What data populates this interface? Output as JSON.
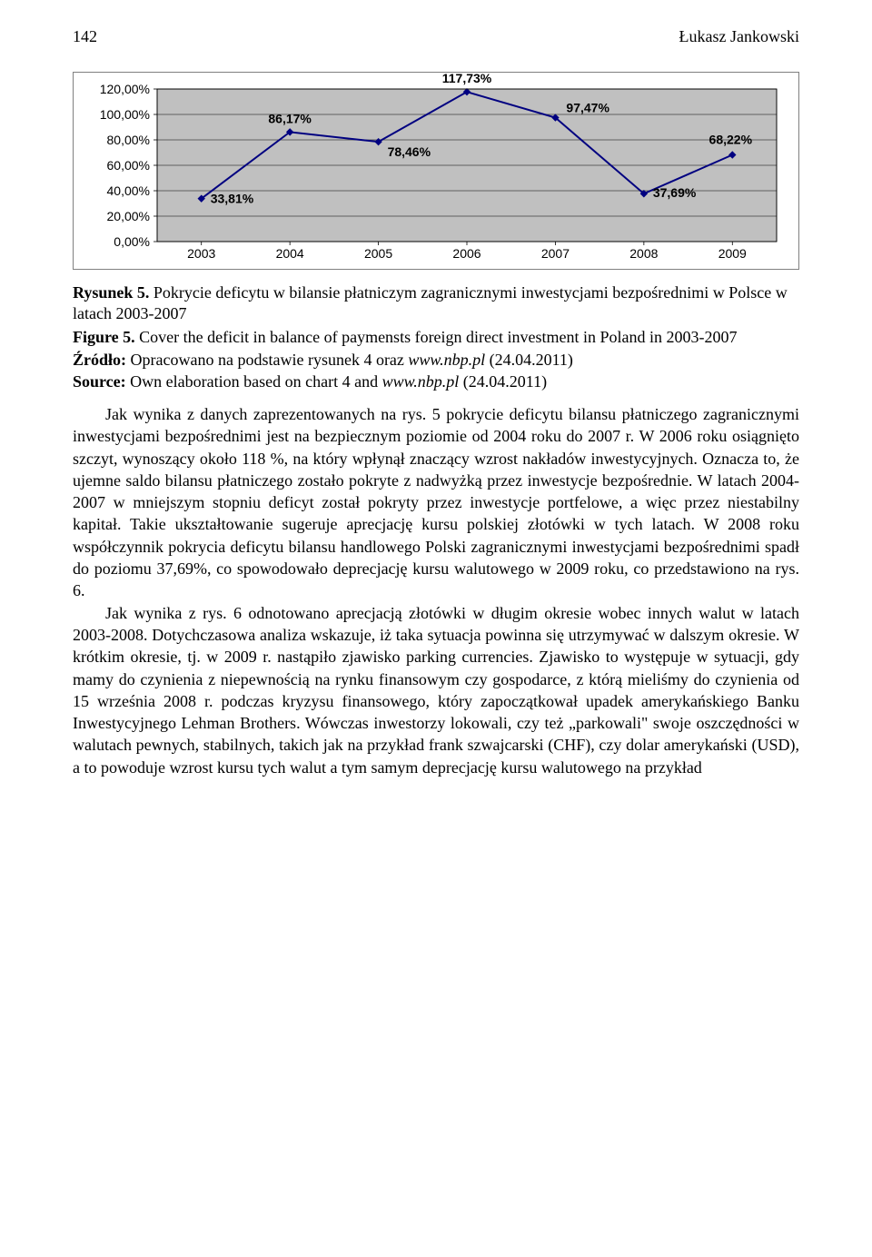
{
  "header": {
    "page_number": "142",
    "author": "Łukasz Jankowski"
  },
  "chart": {
    "type": "line",
    "categories": [
      "2003",
      "2004",
      "2005",
      "2006",
      "2007",
      "2008",
      "2009"
    ],
    "values": [
      33.81,
      86.17,
      78.46,
      117.73,
      97.47,
      37.69,
      68.22
    ],
    "point_labels": [
      "33,81%",
      "86,17%",
      "78,46%",
      "117,73%",
      "97,47%",
      "37,69%",
      "68,22%"
    ],
    "y_ticks": [
      0,
      20,
      40,
      60,
      80,
      100,
      120
    ],
    "y_tick_labels": [
      "0,00%",
      "20,00%",
      "40,00%",
      "60,00%",
      "80,00%",
      "100,00%",
      "120,00%"
    ],
    "ylim": [
      0,
      120
    ],
    "line_color": "#000080",
    "marker_color": "#000080",
    "marker_shape": "diamond",
    "marker_size": 7,
    "line_width": 2,
    "plot_background": "#c0c0c0",
    "grid_color": "#000000",
    "axis_color": "#000000",
    "tick_font_size": 14,
    "label_font_size": 14,
    "label_font_weight": "bold",
    "outer_background": "#ffffff"
  },
  "captions": {
    "rys_label": "Rysunek 5.",
    "rys_text": " Pokrycie deficytu w bilansie płatniczym zagranicznymi inwestycjami bezpośrednimi w Polsce w latach 2003-2007",
    "fig_label": "Figure 5.",
    "fig_text": " Cover the deficit in balance of paymensts foreign direct investment in Poland in 2003-2007",
    "zrodlo_label": "Źródło:",
    "zrodlo_text": " Opracowano na podstawie rysunek 4 oraz ",
    "zrodlo_link": "www.nbp.pl",
    "zrodlo_date": " (24.04.2011)",
    "source_label": "Source:",
    "source_text": " Own elaboration based on chart 4 and ",
    "source_link": "www.nbp.pl",
    "source_date": " (24.04.2011)"
  },
  "paragraphs": {
    "p1": "Jak wynika z danych zaprezentowanych na rys. 5 pokrycie deficytu bilansu płatniczego zagranicznymi inwestycjami bezpośrednimi jest na bezpiecznym poziomie od 2004 roku do 2007 r. W 2006 roku osiągnięto szczyt, wynoszący około 118 %, na który wpłynął znaczący wzrost nakładów inwestycyjnych. Oznacza to, że ujemne saldo bilansu płatniczego zostało pokryte z nadwyżką przez inwestycje bezpośrednie.  W latach 2004-2007 w mniejszym stopniu deficyt został pokryty przez inwestycje portfelowe, a więc przez niestabilny kapitał. Takie ukształtowanie sugeruje aprecjację kursu polskiej złotówki w tych latach. W 2008 roku współczynnik pokrycia deficytu bilansu handlowego Polski zagranicznymi inwestycjami bezpośrednimi spadł do poziomu 37,69%, co spowodowało deprecjację kursu walutowego w 2009 roku, co przedstawiono na  rys. 6.",
    "p2": "Jak wynika z rys. 6 odnotowano aprecjacją złotówki w długim okresie wobec innych walut w latach 2003-2008. Dotychczasowa analiza wskazuje, iż taka sytuacja powinna się utrzymywać w dalszym okresie. W krótkim okresie, tj. w 2009 r. nastąpiło zjawisko parking currencies. Zjawisko to występuje w sytuacji, gdy mamy do czynienia z niepewnością na rynku finansowym czy gospodarce, z którą mieliśmy do czynienia od 15 września 2008 r. podczas kryzysu finansowego, który zapoczątkował upadek amerykańskiego Banku Inwestycyjnego Lehman Brothers. Wówczas inwestorzy lokowali, czy też „parkowali\" swoje oszczędności w walutach pewnych, stabilnych, takich jak na przykład frank szwajcarski (CHF), czy dolar amerykański (USD), a to powoduje wzrost kursu tych walut a tym samym deprecjację kursu walutowego na przykład"
  }
}
